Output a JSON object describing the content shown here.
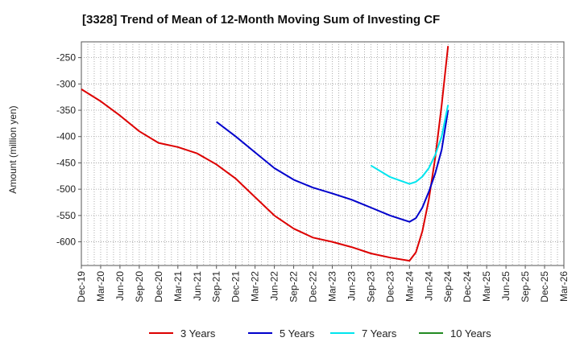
{
  "chart_data": {
    "type": "line",
    "title": "[3328]  Trend of Mean of 12-Month Moving Sum of Investing CF",
    "xlabel": "",
    "ylabel": "Amount (million yen)",
    "ylim": [
      -645,
      -220
    ],
    "yticks": [
      -250,
      -300,
      -350,
      -400,
      -450,
      -500,
      -550,
      -600
    ],
    "grid": true,
    "legend_position": "bottom",
    "x_range_months": [
      0,
      75
    ],
    "xticks": [
      {
        "label": "Dec-19",
        "m": 0
      },
      {
        "label": "Mar-20",
        "m": 3
      },
      {
        "label": "Jun-20",
        "m": 6
      },
      {
        "label": "Sep-20",
        "m": 9
      },
      {
        "label": "Dec-20",
        "m": 12
      },
      {
        "label": "Mar-21",
        "m": 15
      },
      {
        "label": "Jun-21",
        "m": 18
      },
      {
        "label": "Sep-21",
        "m": 21
      },
      {
        "label": "Dec-21",
        "m": 24
      },
      {
        "label": "Mar-22",
        "m": 27
      },
      {
        "label": "Jun-22",
        "m": 30
      },
      {
        "label": "Sep-22",
        "m": 33
      },
      {
        "label": "Dec-22",
        "m": 36
      },
      {
        "label": "Mar-23",
        "m": 39
      },
      {
        "label": "Jun-23",
        "m": 42
      },
      {
        "label": "Sep-23",
        "m": 45
      },
      {
        "label": "Dec-23",
        "m": 48
      },
      {
        "label": "Mar-24",
        "m": 51
      },
      {
        "label": "Jun-24",
        "m": 54
      },
      {
        "label": "Sep-24",
        "m": 57
      },
      {
        "label": "Dec-24",
        "m": 60
      },
      {
        "label": "Mar-25",
        "m": 63
      },
      {
        "label": "Jun-25",
        "m": 66
      },
      {
        "label": "Sep-25",
        "m": 69
      },
      {
        "label": "Dec-25",
        "m": 72
      },
      {
        "label": "Mar-26",
        "m": 75
      }
    ],
    "series": [
      {
        "name": "3 Years",
        "color": "#dd0000",
        "points": [
          [
            0,
            -310
          ],
          [
            3,
            -333
          ],
          [
            6,
            -360
          ],
          [
            9,
            -390
          ],
          [
            12,
            -412
          ],
          [
            15,
            -420
          ],
          [
            18,
            -432
          ],
          [
            21,
            -453
          ],
          [
            24,
            -480
          ],
          [
            27,
            -515
          ],
          [
            30,
            -550
          ],
          [
            33,
            -575
          ],
          [
            36,
            -592
          ],
          [
            39,
            -600
          ],
          [
            42,
            -610
          ],
          [
            45,
            -622
          ],
          [
            48,
            -630
          ],
          [
            51,
            -636
          ],
          [
            52,
            -620
          ],
          [
            53,
            -580
          ],
          [
            54,
            -520
          ],
          [
            55,
            -440
          ],
          [
            56,
            -340
          ],
          [
            57,
            -228
          ]
        ]
      },
      {
        "name": "5 Years",
        "color": "#0000cc",
        "points": [
          [
            21,
            -372
          ],
          [
            24,
            -400
          ],
          [
            27,
            -430
          ],
          [
            30,
            -460
          ],
          [
            33,
            -482
          ],
          [
            36,
            -497
          ],
          [
            39,
            -508
          ],
          [
            42,
            -520
          ],
          [
            45,
            -535
          ],
          [
            48,
            -550
          ],
          [
            51,
            -562
          ],
          [
            52,
            -555
          ],
          [
            53,
            -535
          ],
          [
            54,
            -505
          ],
          [
            55,
            -470
          ],
          [
            56,
            -425
          ],
          [
            57,
            -350
          ]
        ]
      },
      {
        "name": "7 Years",
        "color": "#00e5ee",
        "points": [
          [
            45,
            -455
          ],
          [
            48,
            -477
          ],
          [
            51,
            -490
          ],
          [
            52,
            -486
          ],
          [
            53,
            -476
          ],
          [
            54,
            -460
          ],
          [
            55,
            -435
          ],
          [
            56,
            -400
          ],
          [
            57,
            -340
          ]
        ]
      },
      {
        "name": "10 Years",
        "color": "#228b22",
        "points": []
      }
    ]
  }
}
